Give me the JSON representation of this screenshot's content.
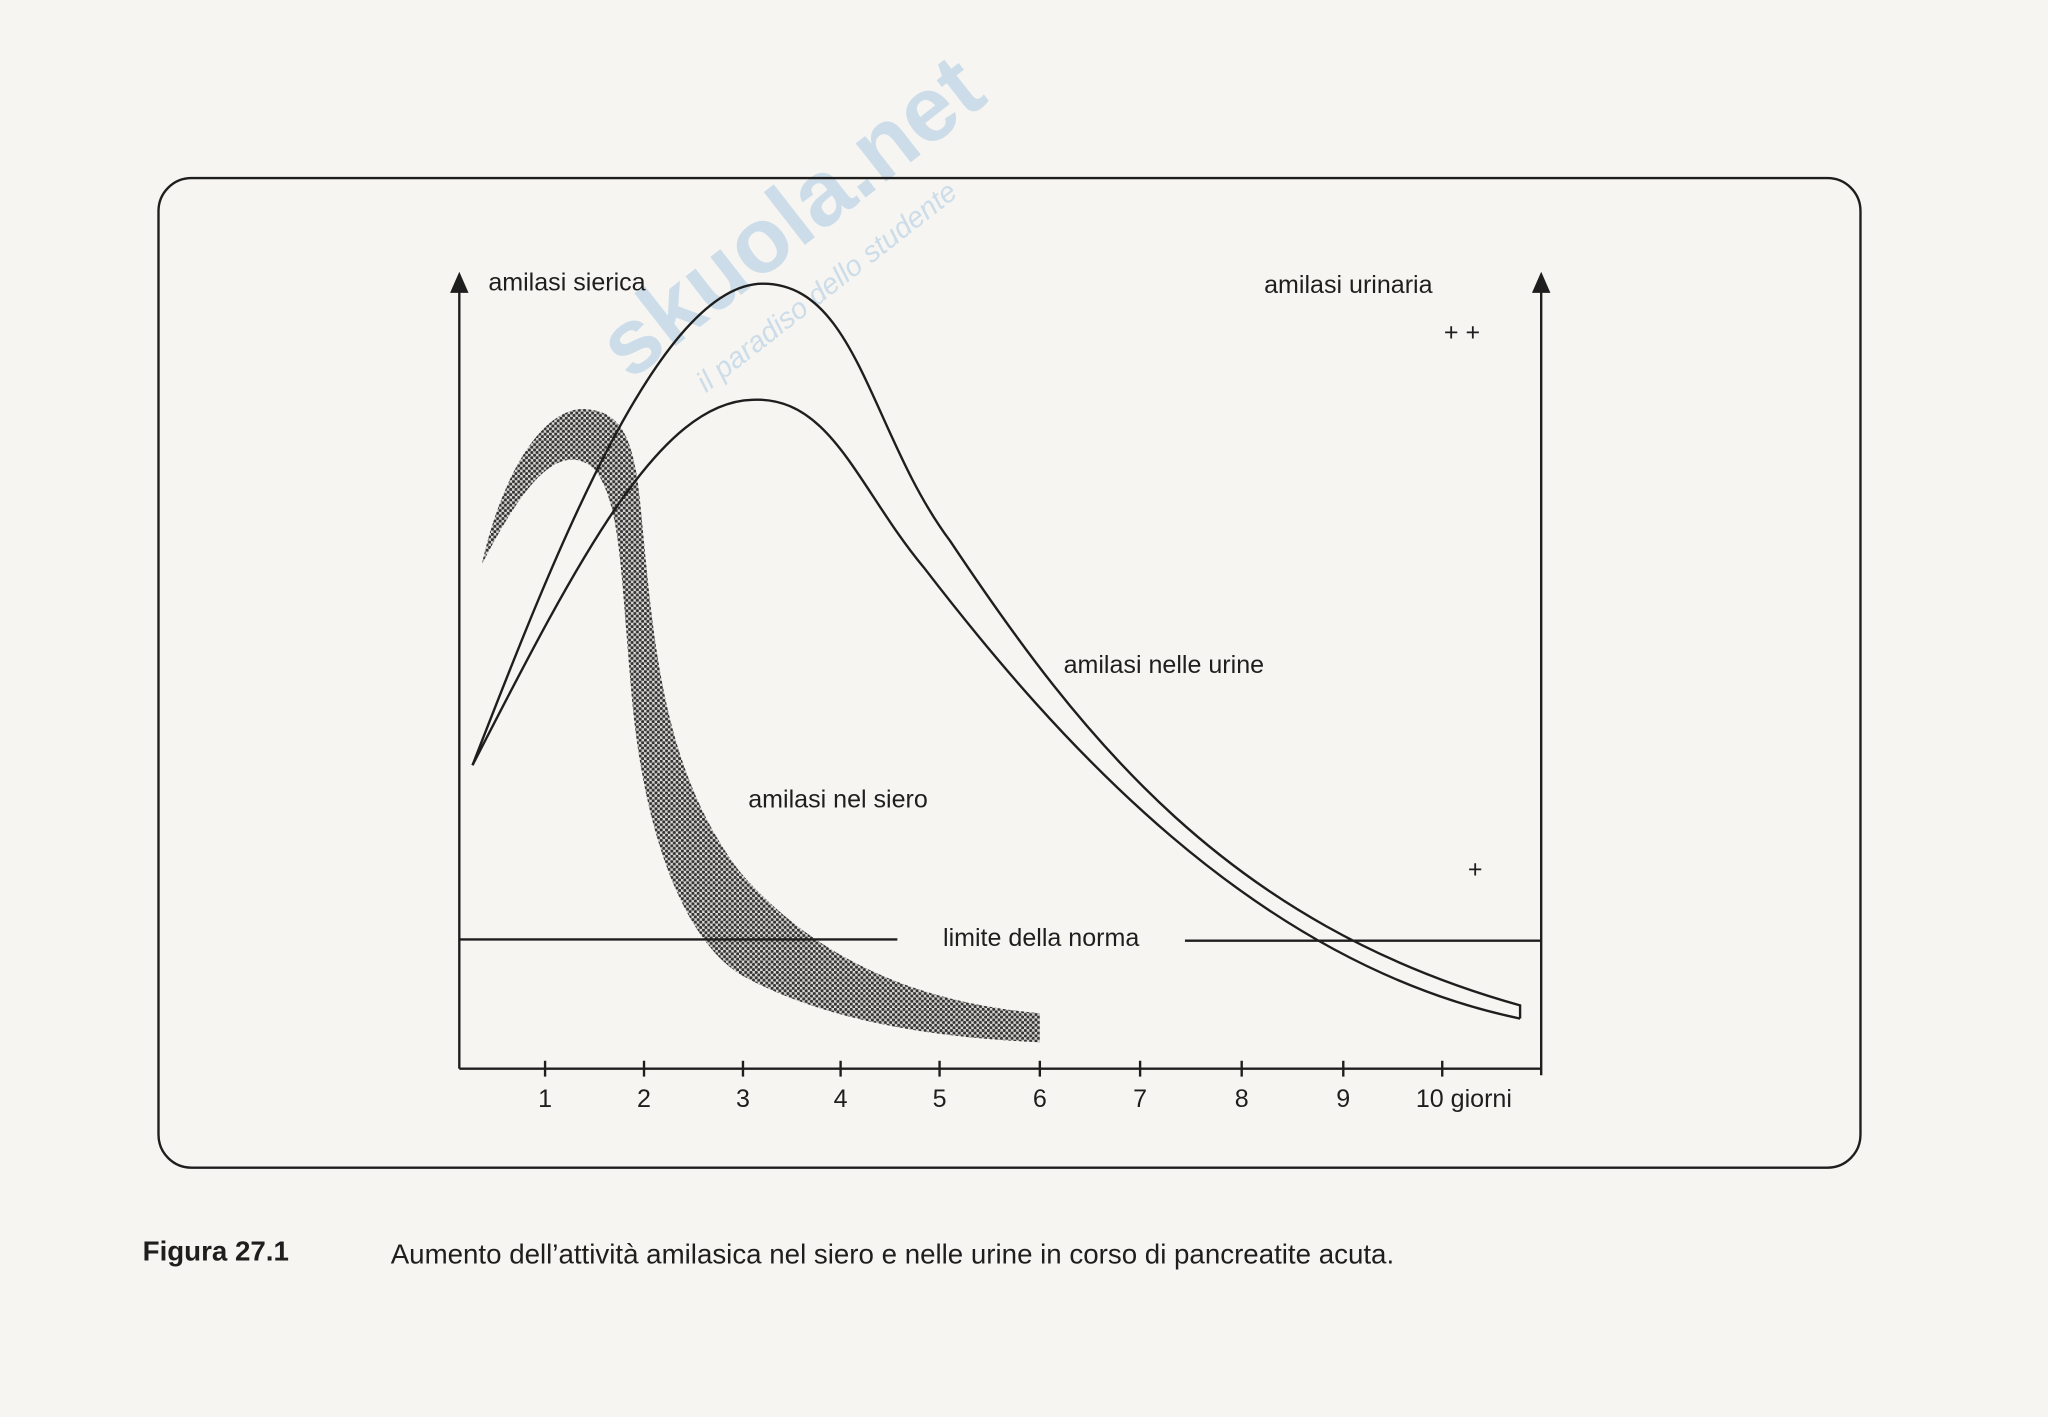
{
  "figure": {
    "y_axis_left": "amilasi sierica",
    "y_axis_right": "amilasi urinaria",
    "marks_right_top": "+ +",
    "mark_right_bottom": "+",
    "curve_urine": "amilasi nelle urine",
    "curve_serum": "amilasi nel siero",
    "norm_line": "limite della norma",
    "x_ticks": [
      "1",
      "2",
      "3",
      "4",
      "5",
      "6",
      "7",
      "8",
      "9",
      "10 giorni"
    ]
  },
  "caption": {
    "label": "Figura 27.1",
    "text": "Aumento dell’attività amilasica nel siero e nelle urine in corso di pancreatite acuta."
  },
  "watermark": {
    "brand": "skuola.net",
    "tagline": "il paradiso dello studente"
  }
}
